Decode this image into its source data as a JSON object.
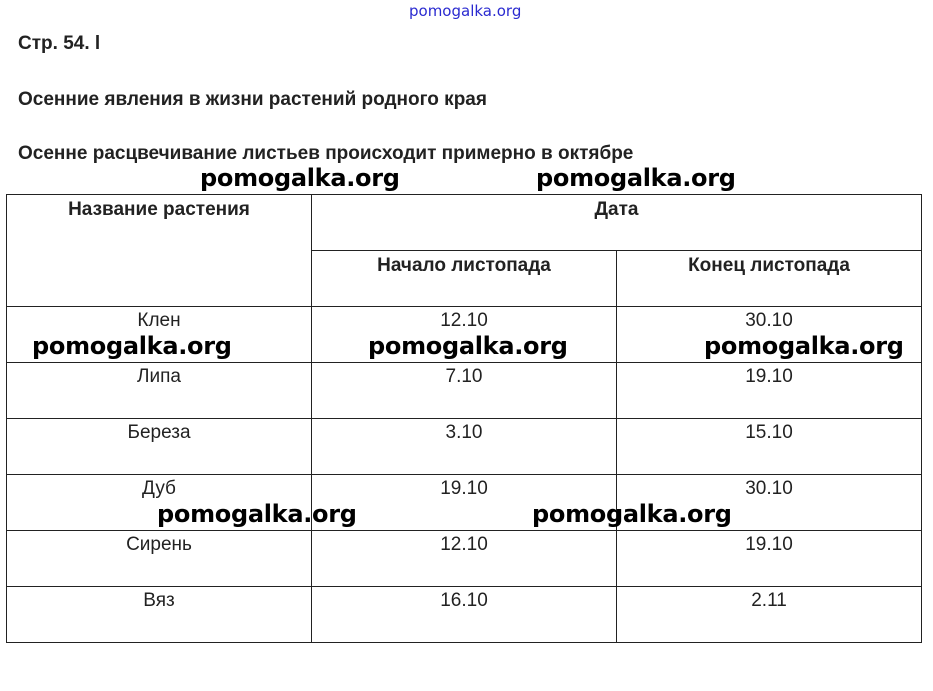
{
  "site_label": "pomogalka.org",
  "header": {
    "page_ref": "Стр. 54. l",
    "title": "Осенние явления в жизни растений родного края",
    "subtitle": "Осенне расцвечивание листьев происходит примерно в октябре"
  },
  "table": {
    "col_plant": "Название растения",
    "col_date": "Дата",
    "col_start": "Начало листопада",
    "col_end": "Конец листопада",
    "rows": [
      {
        "plant": "Клен",
        "start": "12.10",
        "end": "30.10"
      },
      {
        "plant": "Липа",
        "start": "7.10",
        "end": "19.10"
      },
      {
        "plant": "Береза",
        "start": "3.10",
        "end": "15.10"
      },
      {
        "plant": "Дуб",
        "start": "19.10",
        "end": "30.10"
      },
      {
        "plant": "Сирень",
        "start": "12.10",
        "end": "19.10"
      },
      {
        "plant": "Вяз",
        "start": "16.10",
        "end": "2.11"
      }
    ]
  },
  "watermark": "pomogalka.org"
}
